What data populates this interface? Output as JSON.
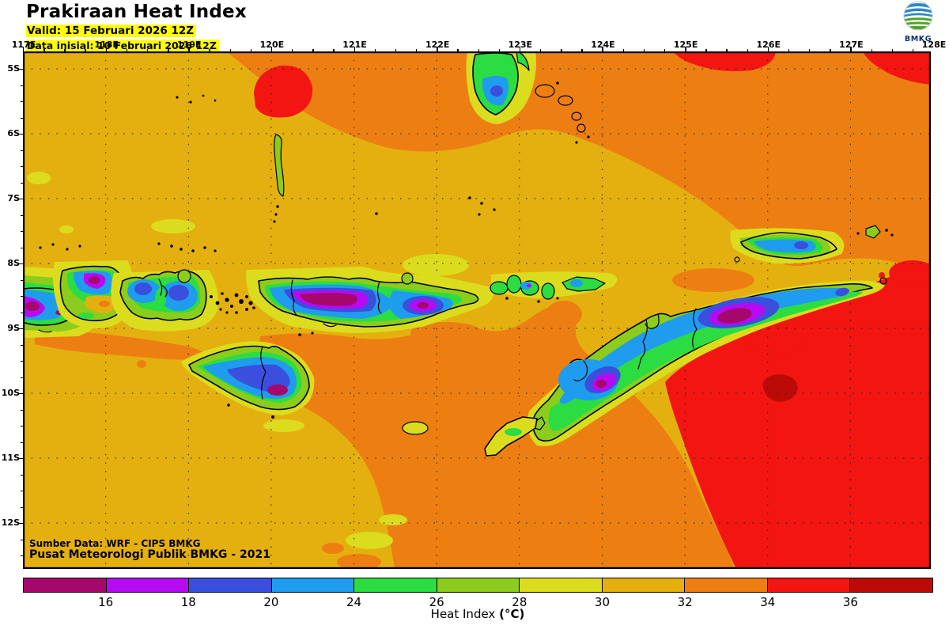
{
  "header": {
    "title": "Prakiraan Heat Index",
    "valid_line": "Valid: 15 Februari 2026 12Z",
    "init_line": "Data inisial: 10 Februari 2026 12Z"
  },
  "logo": {
    "label": "BMKG"
  },
  "axes": {
    "top": [
      "117E",
      "118E",
      "119E",
      "120E",
      "121E",
      "122E",
      "123E",
      "124E",
      "125E",
      "126E",
      "127E",
      "128E"
    ],
    "left": [
      "5S",
      "6S",
      "7S",
      "8S",
      "9S",
      "10S",
      "11S",
      "12S"
    ]
  },
  "credits": {
    "line1": "Sumber Data: WRF - CIPS BMKG",
    "line2": "Pusat Meteorologi Publik BMKG - 2021"
  },
  "colorbar": {
    "title": "Heat Index",
    "unit": "(°C)",
    "tick_labels": [
      "16",
      "18",
      "20",
      "24",
      "26",
      "28",
      "30",
      "32",
      "34",
      "36"
    ],
    "segment_colors": [
      "#a6076b",
      "#b50af2",
      "#3a4fdd",
      "#1f9ced",
      "#2bdd41",
      "#8ccc1c",
      "#dcdc1e",
      "#e4b010",
      "#ed7f12",
      "#f21511",
      "#bc0b07"
    ]
  },
  "palette": {
    "lt16": "#a6076b",
    "v16_18": "#b50af2",
    "v18_20": "#3a4fdd",
    "v20_24": "#1f9ced",
    "v24_26": "#2bdd41",
    "v26_28": "#8ccc1c",
    "v28_30": "#dcdc1e",
    "v30_32": "#e4b010",
    "v32_34": "#ed7f12",
    "v34_36": "#f21511",
    "gt36": "#bc0b07",
    "highlight": "#ffff00",
    "logo_blue": "#2e86c8",
    "logo_green": "#52a32a",
    "logo_text": "#0d2f6e"
  }
}
